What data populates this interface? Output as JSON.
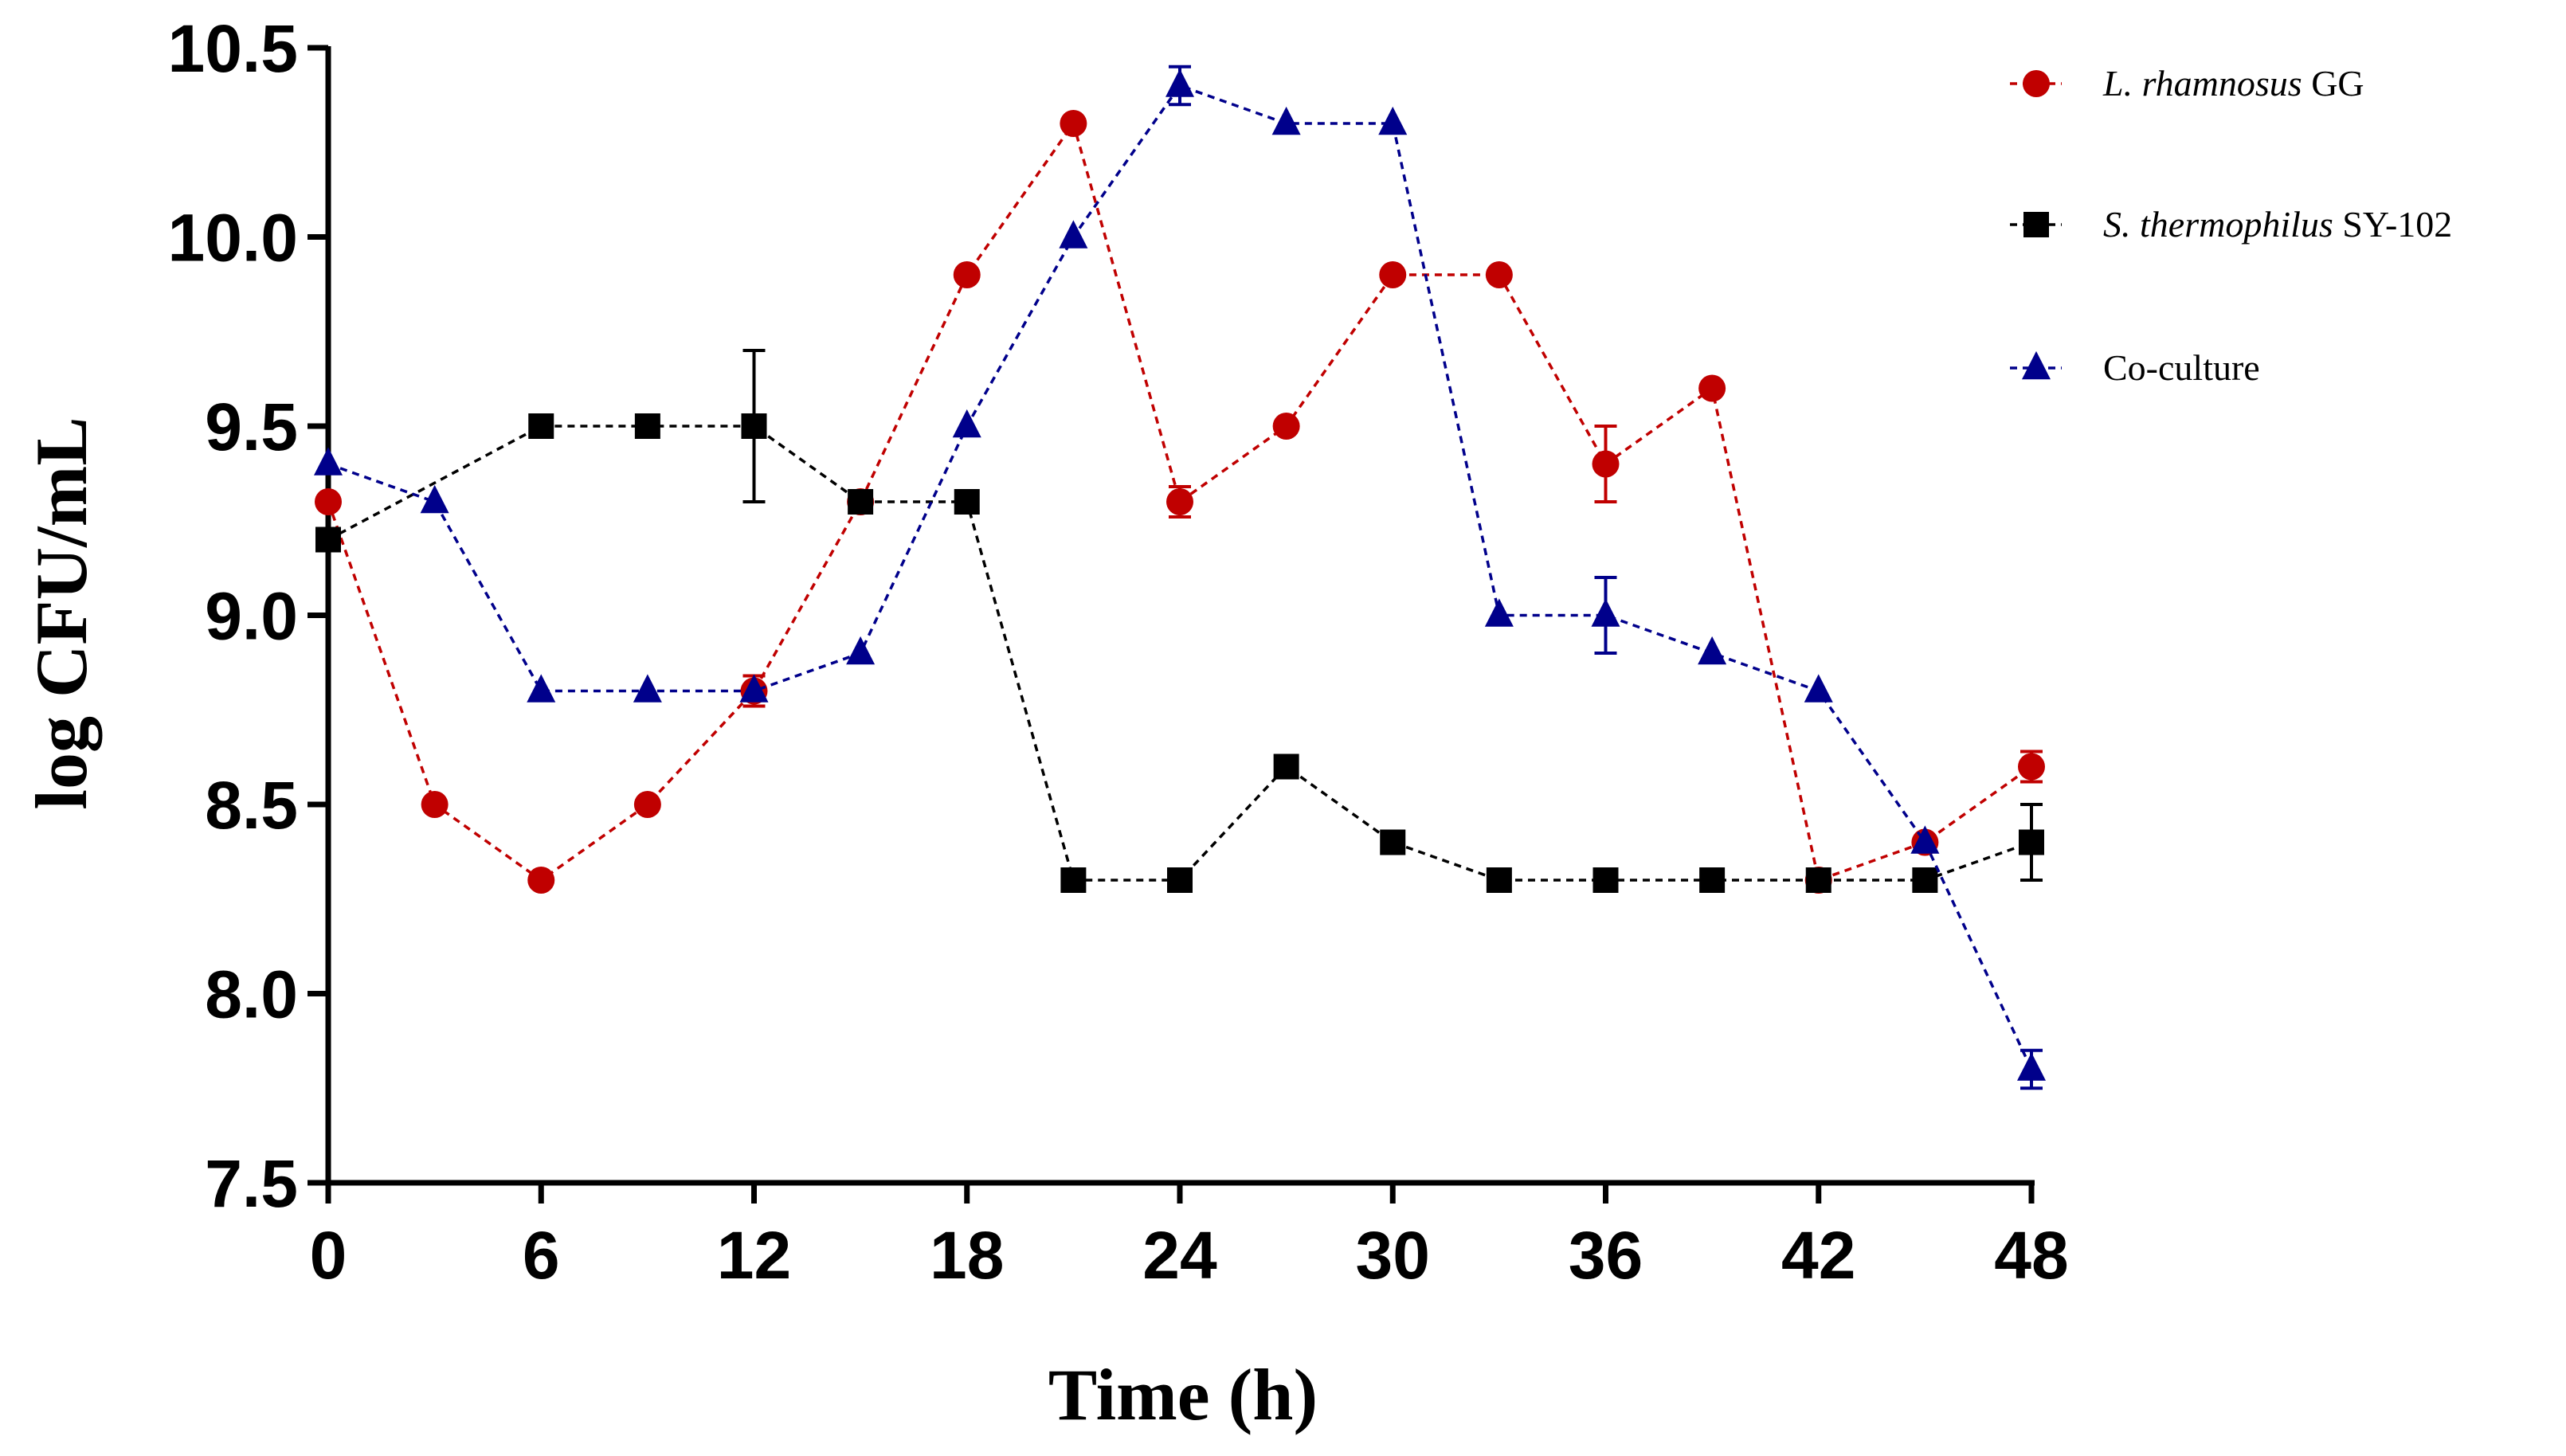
{
  "chart_data": {
    "type": "line",
    "title": "",
    "xlabel": "Time (h)",
    "ylabel": "log CFU/mL",
    "xlim": [
      0,
      48
    ],
    "ylim": [
      7.5,
      10.5
    ],
    "xticks": [
      0,
      6,
      12,
      18,
      24,
      30,
      36,
      42,
      48
    ],
    "xtick_labels": [
      "0",
      "6",
      "12",
      "18",
      "24",
      "30",
      "36",
      "42",
      "48"
    ],
    "yticks": [
      7.5,
      8.0,
      8.5,
      9.0,
      9.5,
      10.0,
      10.5
    ],
    "ytick_labels": [
      "7.5",
      "8.0",
      "8.5",
      "9.0",
      "9.5",
      "10.0",
      "10.5"
    ],
    "legend_position": "top-right",
    "grid": false,
    "series": [
      {
        "name": "L. rhamnosus GG",
        "legend_italic": "L. rhamnosus",
        "legend_rest": "GG",
        "color": "#c00000",
        "marker": "circle",
        "x": [
          0,
          3,
          6,
          9,
          12,
          15,
          18,
          21,
          24,
          27,
          30,
          33,
          36,
          39,
          42,
          45,
          48
        ],
        "y": [
          9.3,
          8.5,
          8.3,
          8.5,
          8.8,
          9.3,
          9.9,
          10.3,
          9.3,
          9.5,
          9.9,
          9.9,
          9.4,
          9.6,
          8.3,
          8.4,
          8.6
        ],
        "err": [
          0,
          0,
          0,
          0,
          0.04,
          0,
          0,
          0,
          0.04,
          0,
          0,
          0,
          0.1,
          0,
          0,
          0,
          0.04
        ]
      },
      {
        "name": "S. thermophilus SY-102",
        "legend_italic": "S. thermophilus",
        "legend_rest": "SY-102",
        "color": "#000000",
        "marker": "square",
        "x": [
          0,
          6,
          9,
          12,
          15,
          18,
          21,
          24,
          27,
          30,
          33,
          36,
          39,
          42,
          45,
          48
        ],
        "y": [
          9.2,
          9.5,
          9.5,
          9.5,
          9.3,
          9.3,
          8.3,
          8.3,
          8.6,
          8.4,
          8.3,
          8.3,
          8.3,
          8.3,
          8.3,
          8.4
        ],
        "err": [
          0,
          0,
          0,
          0.2,
          0,
          0,
          0,
          0,
          0,
          0,
          0,
          0,
          0,
          0,
          0,
          0.1
        ]
      },
      {
        "name": "Co-culture",
        "legend_italic": "",
        "legend_rest": "Co-culture",
        "color": "#00008b",
        "marker": "triangle",
        "x": [
          0,
          3,
          6,
          9,
          12,
          15,
          18,
          21,
          24,
          27,
          30,
          33,
          36,
          39,
          42,
          45,
          48
        ],
        "y": [
          9.4,
          9.3,
          8.8,
          8.8,
          8.8,
          8.9,
          9.5,
          10.0,
          10.4,
          10.3,
          10.3,
          9.0,
          9.0,
          8.9,
          8.8,
          8.4,
          7.8
        ],
        "err": [
          0,
          0,
          0,
          0,
          0,
          0,
          0,
          0,
          0.05,
          0,
          0,
          0,
          0.1,
          0,
          0,
          0,
          0.05
        ]
      }
    ]
  }
}
